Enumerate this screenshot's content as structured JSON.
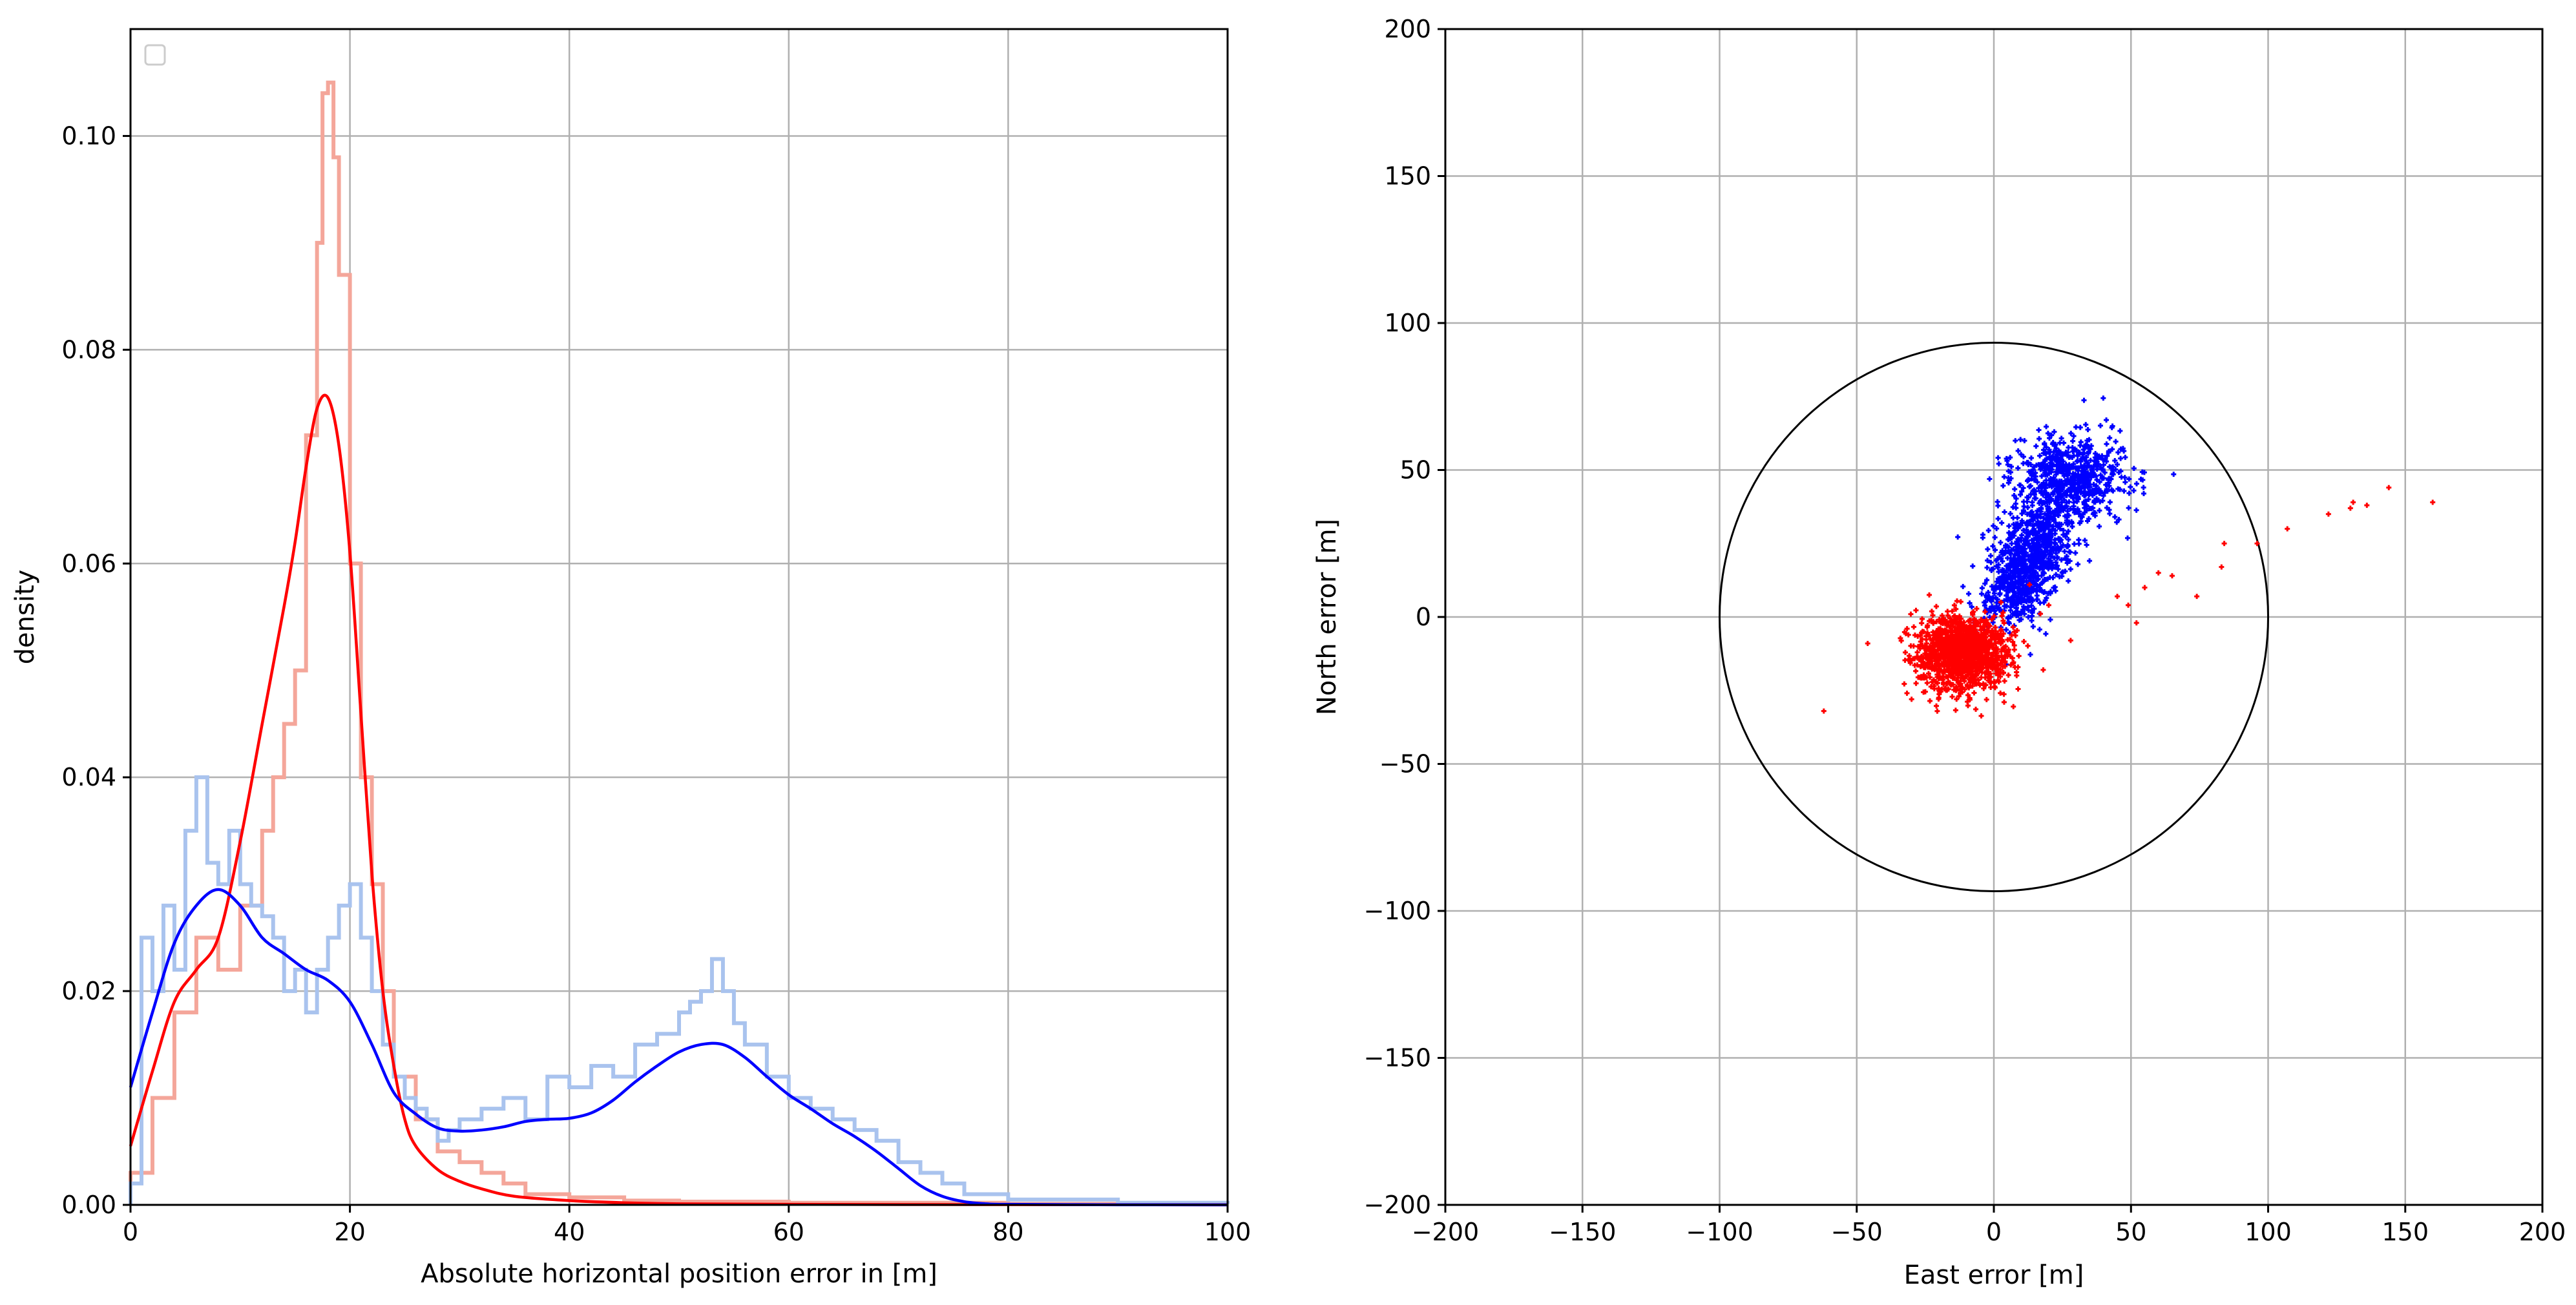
{
  "chart_data": [
    {
      "type": "area",
      "xlabel": "Absolute horizontal position error in [m]",
      "ylabel": "density",
      "xlim": [
        0,
        100
      ],
      "ylim": [
        0,
        0.11
      ],
      "x_ticks": [
        "0",
        "20",
        "40",
        "60",
        "80",
        "100"
      ],
      "y_ticks": [
        "0.00",
        "0.02",
        "0.04",
        "0.06",
        "0.08",
        "0.10"
      ],
      "grid": true,
      "legend": "top-left (empty)",
      "colors": {
        "red_hist": "#f4a69a",
        "blue_hist": "#a9c3ee",
        "red_kde": "#ff0000",
        "blue_kde": "#0000ff"
      },
      "histograms": [
        {
          "color": "#f4a69a",
          "x": [
            0,
            2,
            4,
            6,
            8,
            10,
            12,
            13,
            14,
            15,
            16,
            17,
            17.5,
            18,
            18.5,
            19,
            20,
            21,
            22,
            23,
            24,
            26,
            28,
            30,
            32,
            34,
            36,
            40,
            45,
            50,
            60,
            80,
            100
          ],
          "y": [
            0.003,
            0.01,
            0.018,
            0.025,
            0.022,
            0.028,
            0.035,
            0.04,
            0.045,
            0.05,
            0.072,
            0.09,
            0.104,
            0.105,
            0.098,
            0.087,
            0.06,
            0.04,
            0.03,
            0.02,
            0.012,
            0.008,
            0.005,
            0.004,
            0.003,
            0.002,
            0.001,
            0.0007,
            0.0004,
            0.0003,
            0.0002,
            0.0001,
            0.0001
          ]
        },
        {
          "color": "#a9c3ee",
          "x": [
            0,
            1,
            2,
            3,
            4,
            5,
            6,
            7,
            8,
            9,
            10,
            11,
            12,
            13,
            14,
            15,
            16,
            17,
            18,
            19,
            20,
            21,
            22,
            23,
            24,
            25,
            26,
            27,
            28,
            29,
            30,
            32,
            34,
            36,
            38,
            40,
            42,
            44,
            46,
            48,
            50,
            51,
            52,
            53,
            54,
            55,
            56,
            58,
            60,
            62,
            64,
            66,
            68,
            70,
            72,
            74,
            76,
            80,
            90,
            100
          ],
          "y": [
            0.002,
            0.025,
            0.02,
            0.028,
            0.022,
            0.035,
            0.04,
            0.032,
            0.03,
            0.035,
            0.03,
            0.028,
            0.027,
            0.025,
            0.02,
            0.022,
            0.018,
            0.022,
            0.025,
            0.028,
            0.03,
            0.025,
            0.02,
            0.015,
            0.012,
            0.01,
            0.009,
            0.008,
            0.006,
            0.007,
            0.008,
            0.009,
            0.01,
            0.008,
            0.012,
            0.011,
            0.013,
            0.012,
            0.015,
            0.016,
            0.018,
            0.019,
            0.02,
            0.023,
            0.02,
            0.017,
            0.015,
            0.012,
            0.01,
            0.009,
            0.008,
            0.007,
            0.006,
            0.004,
            0.003,
            0.002,
            0.001,
            0.0005,
            0.0002,
            0.0001
          ]
        }
      ],
      "series": [
        {
          "color": "#ff0000",
          "x": [
            0,
            2,
            4,
            6,
            8,
            10,
            12,
            14,
            15,
            16,
            17,
            18,
            19,
            20,
            21,
            22,
            23,
            24,
            25,
            26,
            28,
            30,
            32,
            35,
            40,
            45,
            50,
            60,
            80,
            100
          ],
          "y": [
            0.0055,
            0.0125,
            0.019,
            0.022,
            0.025,
            0.034,
            0.045,
            0.056,
            0.062,
            0.069,
            0.0745,
            0.0755,
            0.071,
            0.061,
            0.046,
            0.031,
            0.02,
            0.013,
            0.008,
            0.0055,
            0.0033,
            0.0022,
            0.0015,
            0.0008,
            0.0004,
            0.0002,
            0.0001,
            5e-05,
            2e-05,
            1e-05
          ]
        },
        {
          "color": "#0000ff",
          "x": [
            0,
            2,
            4,
            6,
            8,
            10,
            12,
            14,
            16,
            18,
            20,
            22,
            24,
            26,
            28,
            30,
            32,
            34,
            36,
            38,
            40,
            42,
            44,
            46,
            48,
            50,
            52,
            54,
            56,
            58,
            60,
            62,
            64,
            66,
            68,
            70,
            72,
            74,
            76,
            78,
            80,
            90,
            100
          ],
          "y": [
            0.011,
            0.018,
            0.0245,
            0.028,
            0.0295,
            0.028,
            0.025,
            0.0235,
            0.022,
            0.021,
            0.019,
            0.015,
            0.0105,
            0.0085,
            0.0072,
            0.0069,
            0.007,
            0.0073,
            0.0078,
            0.008,
            0.0081,
            0.0086,
            0.0098,
            0.0115,
            0.013,
            0.0143,
            0.015,
            0.015,
            0.0138,
            0.012,
            0.0103,
            0.009,
            0.0076,
            0.0064,
            0.005,
            0.0034,
            0.0018,
            0.0008,
            0.0003,
            0.0001,
            5e-05,
            1e-05,
            0
          ]
        }
      ]
    },
    {
      "type": "scatter",
      "xlabel": "East error [m]",
      "ylabel": "North error [m]",
      "xlim": [
        -200,
        200
      ],
      "ylim": [
        -200,
        200
      ],
      "x_ticks": [
        "−200",
        "−150",
        "−100",
        "−50",
        "0",
        "50",
        "100",
        "150",
        "200"
      ],
      "y_ticks": [
        "−200",
        "−150",
        "−100",
        "−50",
        "0",
        "50",
        "100",
        "150",
        "200"
      ],
      "grid": true,
      "circle_radius": 100,
      "colors": {
        "circle": "#000000"
      },
      "clusters": [
        {
          "color": "#0000ff",
          "count": 900,
          "center": [
            5,
            5
          ],
          "spread": [
            6,
            6
          ],
          "direction": [
            1,
            1.8
          ],
          "extent": [
            0,
            30
          ]
        },
        {
          "color": "#0000ff",
          "count": 700,
          "center": [
            28,
            47
          ],
          "spread": [
            10,
            7
          ],
          "direction": [
            0,
            0
          ],
          "extent": [
            0,
            0
          ]
        },
        {
          "color": "#ff0000",
          "count": 1400,
          "center": [
            -12,
            -12
          ],
          "spread": [
            8,
            6
          ],
          "direction": [
            0,
            0
          ],
          "extent": [
            0,
            0
          ]
        }
      ],
      "points": [
        {
          "color": "#0000ff",
          "x": [
            -4,
            41,
            22,
            34,
            51
          ],
          "y": [
            28,
            67,
            63,
            60,
            43
          ]
        },
        {
          "color": "#ff0000",
          "x": [
            -62,
            -46,
            -30,
            -20,
            18,
            13,
            20,
            28,
            45,
            49,
            52,
            55,
            60,
            65,
            74,
            84,
            83,
            96,
            107,
            122,
            131,
            136,
            144,
            160,
            130
          ],
          "y": [
            -32,
            -9,
            -28,
            -25,
            -18,
            11,
            4,
            -8,
            7,
            4,
            -2,
            10,
            15,
            14,
            7,
            25,
            17,
            25,
            30,
            35,
            39,
            38,
            44,
            39,
            37
          ]
        }
      ]
    }
  ]
}
